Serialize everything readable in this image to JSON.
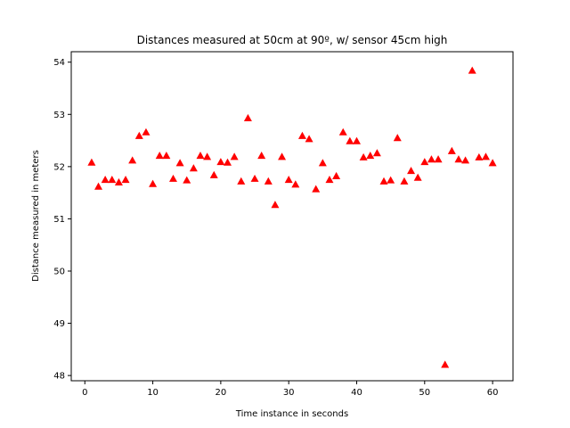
{
  "chart_data": {
    "type": "scatter",
    "title": "Distances measured at 50cm at 90º, w/ sensor 45cm high",
    "xlabel": "Time instance in seconds",
    "ylabel": "Distance measured in meters",
    "xlim": [
      -2,
      63
    ],
    "ylim": [
      47.9,
      54.2
    ],
    "xticks": [
      0,
      10,
      20,
      30,
      40,
      50,
      60
    ],
    "yticks": [
      48,
      49,
      50,
      51,
      52,
      53,
      54
    ],
    "grid": false,
    "marker": "triangle-up",
    "color": "#ff0000",
    "x": [
      1,
      2,
      3,
      4,
      5,
      6,
      7,
      8,
      9,
      10,
      11,
      12,
      13,
      14,
      15,
      16,
      17,
      18,
      19,
      20,
      21,
      22,
      23,
      24,
      25,
      26,
      27,
      28,
      29,
      30,
      31,
      32,
      33,
      34,
      35,
      36,
      37,
      38,
      39,
      40,
      41,
      42,
      43,
      44,
      45,
      46,
      47,
      48,
      49,
      50,
      51,
      52,
      53,
      54,
      55,
      56,
      57,
      58,
      59,
      60
    ],
    "y": [
      52.08,
      51.62,
      51.75,
      51.75,
      51.7,
      51.75,
      52.12,
      52.59,
      52.66,
      51.67,
      52.21,
      52.21,
      51.77,
      52.07,
      51.74,
      51.97,
      52.21,
      52.19,
      51.84,
      52.09,
      52.08,
      52.19,
      51.72,
      52.93,
      51.77,
      52.21,
      51.72,
      51.27,
      52.19,
      51.75,
      51.66,
      52.59,
      52.53,
      51.57,
      52.07,
      51.75,
      51.82,
      52.66,
      52.49,
      52.49,
      52.18,
      52.21,
      52.26,
      51.72,
      51.74,
      52.55,
      51.72,
      51.92,
      51.79,
      52.09,
      52.14,
      52.14,
      48.21,
      52.3,
      52.14,
      52.12,
      53.84,
      52.18,
      52.19,
      52.07
    ]
  }
}
